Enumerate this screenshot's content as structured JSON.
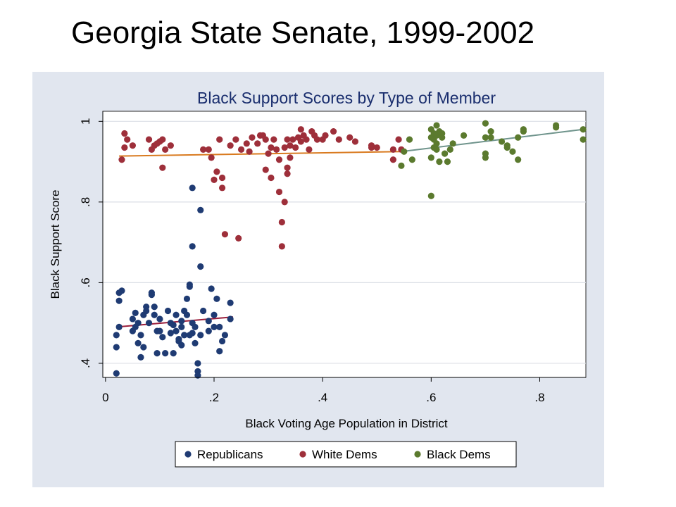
{
  "slide": {
    "title": "Georgia State Senate, 1999-2002"
  },
  "chart_data": {
    "type": "scatter",
    "title": "Black Support Scores by Type of Member",
    "xlabel": "Black Voting Age Population in District",
    "ylabel": "Black Support Score",
    "xlim": [
      -0.005,
      0.885
    ],
    "ylim": [
      0.365,
      1.025
    ],
    "x_ticks": [
      0,
      0.2,
      0.4,
      0.6,
      0.8
    ],
    "x_tick_labels": [
      "0",
      ".2",
      ".4",
      ".6",
      ".8"
    ],
    "y_ticks": [
      0.4,
      0.6,
      0.8,
      1.0
    ],
    "y_tick_labels": [
      ".4",
      ".6",
      ".8",
      "1"
    ],
    "grid": "horizontal",
    "legend_placement": "bottom",
    "background": "#e1e6ef",
    "plot_background": "#ffffff",
    "series": [
      {
        "name": "Republicans",
        "color": "#1f3b73",
        "fit_color": "#9b1e3b",
        "fit": {
          "x": [
            0.02,
            0.235
          ],
          "y": [
            0.49,
            0.515
          ]
        },
        "points": [
          [
            0.02,
            0.375
          ],
          [
            0.02,
            0.44
          ],
          [
            0.02,
            0.47
          ],
          [
            0.025,
            0.49
          ],
          [
            0.025,
            0.555
          ],
          [
            0.025,
            0.575
          ],
          [
            0.03,
            0.58
          ],
          [
            0.05,
            0.48
          ],
          [
            0.05,
            0.51
          ],
          [
            0.055,
            0.525
          ],
          [
            0.055,
            0.49
          ],
          [
            0.06,
            0.45
          ],
          [
            0.06,
            0.5
          ],
          [
            0.065,
            0.47
          ],
          [
            0.065,
            0.415
          ],
          [
            0.07,
            0.44
          ],
          [
            0.07,
            0.52
          ],
          [
            0.075,
            0.53
          ],
          [
            0.075,
            0.54
          ],
          [
            0.08,
            0.5
          ],
          [
            0.085,
            0.575
          ],
          [
            0.085,
            0.57
          ],
          [
            0.09,
            0.54
          ],
          [
            0.09,
            0.52
          ],
          [
            0.095,
            0.48
          ],
          [
            0.095,
            0.425
          ],
          [
            0.1,
            0.51
          ],
          [
            0.105,
            0.465
          ],
          [
            0.11,
            0.425
          ],
          [
            0.115,
            0.53
          ],
          [
            0.12,
            0.5
          ],
          [
            0.125,
            0.495
          ],
          [
            0.125,
            0.425
          ],
          [
            0.13,
            0.48
          ],
          [
            0.135,
            0.46
          ],
          [
            0.135,
            0.455
          ],
          [
            0.14,
            0.49
          ],
          [
            0.14,
            0.505
          ],
          [
            0.145,
            0.47
          ],
          [
            0.145,
            0.53
          ],
          [
            0.15,
            0.56
          ],
          [
            0.15,
            0.52
          ],
          [
            0.155,
            0.47
          ],
          [
            0.155,
            0.595
          ],
          [
            0.155,
            0.59
          ],
          [
            0.16,
            0.5
          ],
          [
            0.16,
            0.475
          ],
          [
            0.16,
            0.835
          ],
          [
            0.16,
            0.69
          ],
          [
            0.165,
            0.49
          ],
          [
            0.165,
            0.45
          ],
          [
            0.17,
            0.4
          ],
          [
            0.17,
            0.38
          ],
          [
            0.17,
            0.37
          ],
          [
            0.175,
            0.47
          ],
          [
            0.175,
            0.64
          ],
          [
            0.175,
            0.78
          ],
          [
            0.18,
            0.53
          ],
          [
            0.19,
            0.505
          ],
          [
            0.19,
            0.48
          ],
          [
            0.195,
            0.585
          ],
          [
            0.2,
            0.49
          ],
          [
            0.2,
            0.52
          ],
          [
            0.205,
            0.56
          ],
          [
            0.21,
            0.49
          ],
          [
            0.21,
            0.43
          ],
          [
            0.215,
            0.455
          ],
          [
            0.22,
            0.47
          ],
          [
            0.23,
            0.55
          ],
          [
            0.23,
            0.51
          ],
          [
            0.13,
            0.52
          ],
          [
            0.12,
            0.475
          ],
          [
            0.1,
            0.48
          ],
          [
            0.14,
            0.445
          ]
        ]
      },
      {
        "name": "White Dems",
        "color": "#9e2f3a",
        "fit_color": "#d97a1f",
        "fit": {
          "x": [
            0.025,
            0.545
          ],
          "y": [
            0.914,
            0.925
          ]
        },
        "points": [
          [
            0.03,
            0.905
          ],
          [
            0.035,
            0.935
          ],
          [
            0.035,
            0.97
          ],
          [
            0.04,
            0.955
          ],
          [
            0.05,
            0.94
          ],
          [
            0.08,
            0.955
          ],
          [
            0.085,
            0.93
          ],
          [
            0.09,
            0.94
          ],
          [
            0.095,
            0.945
          ],
          [
            0.1,
            0.95
          ],
          [
            0.105,
            0.955
          ],
          [
            0.105,
            0.885
          ],
          [
            0.11,
            0.93
          ],
          [
            0.12,
            0.94
          ],
          [
            0.18,
            0.93
          ],
          [
            0.19,
            0.93
          ],
          [
            0.195,
            0.91
          ],
          [
            0.2,
            0.855
          ],
          [
            0.205,
            0.875
          ],
          [
            0.21,
            0.955
          ],
          [
            0.215,
            0.86
          ],
          [
            0.215,
            0.835
          ],
          [
            0.22,
            0.72
          ],
          [
            0.23,
            0.94
          ],
          [
            0.24,
            0.955
          ],
          [
            0.245,
            0.71
          ],
          [
            0.25,
            0.93
          ],
          [
            0.26,
            0.945
          ],
          [
            0.265,
            0.925
          ],
          [
            0.27,
            0.96
          ],
          [
            0.28,
            0.945
          ],
          [
            0.285,
            0.965
          ],
          [
            0.29,
            0.965
          ],
          [
            0.295,
            0.955
          ],
          [
            0.295,
            0.88
          ],
          [
            0.3,
            0.92
          ],
          [
            0.305,
            0.935
          ],
          [
            0.305,
            0.86
          ],
          [
            0.31,
            0.955
          ],
          [
            0.315,
            0.93
          ],
          [
            0.32,
            0.905
          ],
          [
            0.32,
            0.825
          ],
          [
            0.325,
            0.75
          ],
          [
            0.325,
            0.69
          ],
          [
            0.33,
            0.8
          ],
          [
            0.33,
            0.935
          ],
          [
            0.335,
            0.955
          ],
          [
            0.335,
            0.885
          ],
          [
            0.335,
            0.87
          ],
          [
            0.34,
            0.91
          ],
          [
            0.34,
            0.94
          ],
          [
            0.345,
            0.955
          ],
          [
            0.35,
            0.935
          ],
          [
            0.355,
            0.96
          ],
          [
            0.36,
            0.98
          ],
          [
            0.36,
            0.95
          ],
          [
            0.365,
            0.965
          ],
          [
            0.37,
            0.955
          ],
          [
            0.375,
            0.93
          ],
          [
            0.38,
            0.975
          ],
          [
            0.385,
            0.965
          ],
          [
            0.39,
            0.955
          ],
          [
            0.4,
            0.955
          ],
          [
            0.405,
            0.965
          ],
          [
            0.42,
            0.975
          ],
          [
            0.43,
            0.955
          ],
          [
            0.45,
            0.96
          ],
          [
            0.46,
            0.95
          ],
          [
            0.49,
            0.94
          ],
          [
            0.49,
            0.935
          ],
          [
            0.5,
            0.935
          ],
          [
            0.53,
            0.905
          ],
          [
            0.53,
            0.93
          ],
          [
            0.54,
            0.955
          ],
          [
            0.545,
            0.93
          ]
        ]
      },
      {
        "name": "Black Dems",
        "color": "#5b7a2e",
        "fit_color": "#6f948c",
        "fit": {
          "x": [
            0.545,
            0.88
          ],
          "y": [
            0.925,
            0.98
          ]
        },
        "points": [
          [
            0.545,
            0.89
          ],
          [
            0.55,
            0.925
          ],
          [
            0.56,
            0.955
          ],
          [
            0.565,
            0.905
          ],
          [
            0.6,
            0.98
          ],
          [
            0.6,
            0.96
          ],
          [
            0.6,
            0.91
          ],
          [
            0.6,
            0.815
          ],
          [
            0.605,
            0.97
          ],
          [
            0.605,
            0.955
          ],
          [
            0.605,
            0.935
          ],
          [
            0.61,
            0.99
          ],
          [
            0.61,
            0.965
          ],
          [
            0.61,
            0.945
          ],
          [
            0.61,
            0.93
          ],
          [
            0.615,
            0.9
          ],
          [
            0.615,
            0.975
          ],
          [
            0.62,
            0.97
          ],
          [
            0.625,
            0.92
          ],
          [
            0.63,
            0.9
          ],
          [
            0.635,
            0.93
          ],
          [
            0.64,
            0.945
          ],
          [
            0.66,
            0.965
          ],
          [
            0.7,
            0.995
          ],
          [
            0.7,
            0.96
          ],
          [
            0.71,
            0.975
          ],
          [
            0.71,
            0.96
          ],
          [
            0.7,
            0.92
          ],
          [
            0.7,
            0.91
          ],
          [
            0.73,
            0.95
          ],
          [
            0.74,
            0.94
          ],
          [
            0.74,
            0.935
          ],
          [
            0.75,
            0.925
          ],
          [
            0.76,
            0.905
          ],
          [
            0.76,
            0.96
          ],
          [
            0.77,
            0.975
          ],
          [
            0.77,
            0.98
          ],
          [
            0.83,
            0.99
          ],
          [
            0.83,
            0.985
          ],
          [
            0.88,
            0.98
          ],
          [
            0.88,
            0.955
          ],
          [
            0.62,
            0.96
          ]
        ]
      }
    ]
  }
}
